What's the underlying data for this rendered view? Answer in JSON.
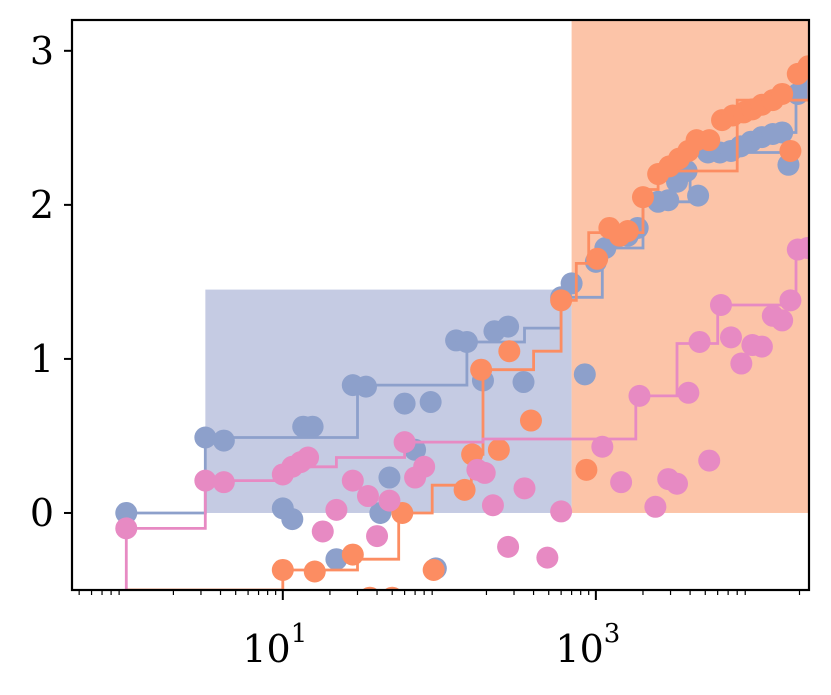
{
  "chart_data": {
    "type": "scatter",
    "title": "",
    "xlabel": "",
    "ylabel": "",
    "xscale": "log",
    "xlim": [
      0.45,
      23000
    ],
    "ylim": [
      -0.5,
      3.2
    ],
    "grid": false,
    "legend": "none",
    "x_ticks": [
      {
        "base": "10",
        "exp": "1",
        "value": 10
      },
      {
        "base": "10",
        "exp": "3",
        "value": 1000
      }
    ],
    "y_ticks": [
      {
        "label": "0",
        "value": 0
      },
      {
        "label": "1",
        "value": 1
      },
      {
        "label": "2",
        "value": 2
      },
      {
        "label": "3",
        "value": 3
      }
    ],
    "shaded_regions": [
      {
        "color": "#c5cbe3",
        "x_range": [
          3.2,
          700
        ],
        "y_range": [
          0,
          1.45
        ]
      },
      {
        "color": "#fcc4a8",
        "x_range": [
          700,
          23000
        ],
        "y_range": [
          0,
          3.2
        ]
      }
    ],
    "series": [
      {
        "color": "#8da0cb",
        "step_line": [
          [
            1,
            0
          ],
          [
            3.2,
            0
          ],
          [
            3.2,
            0.49
          ],
          [
            30,
            0.49
          ],
          [
            30,
            0.83
          ],
          [
            150,
            0.83
          ],
          [
            150,
            1.11
          ],
          [
            350,
            1.11
          ],
          [
            350,
            1.2
          ],
          [
            600,
            1.2
          ],
          [
            600,
            1.4
          ],
          [
            1100,
            1.4
          ],
          [
            1100,
            1.72
          ],
          [
            2000,
            1.72
          ],
          [
            2000,
            2.02
          ],
          [
            4000,
            2.02
          ],
          [
            4000,
            2.34
          ],
          [
            16000,
            2.34
          ],
          [
            16000,
            2.47
          ],
          [
            19000,
            2.47
          ],
          [
            19000,
            2.72
          ],
          [
            23000,
            2.72
          ]
        ],
        "points": [
          [
            1,
            0.0
          ],
          [
            3.2,
            0.49
          ],
          [
            4.2,
            0.47
          ],
          [
            10,
            0.03
          ],
          [
            11.5,
            -0.04
          ],
          [
            13.5,
            0.56
          ],
          [
            15.5,
            0.56
          ],
          [
            22,
            -0.3
          ],
          [
            28,
            0.83
          ],
          [
            34,
            0.82
          ],
          [
            42,
            0.0
          ],
          [
            48,
            0.23
          ],
          [
            60,
            0.71
          ],
          [
            70,
            0.41
          ],
          [
            88,
            0.72
          ],
          [
            95,
            -0.36
          ],
          [
            128,
            1.12
          ],
          [
            150,
            1.11
          ],
          [
            190,
            0.86
          ],
          [
            225,
            1.18
          ],
          [
            275,
            1.21
          ],
          [
            345,
            0.85
          ],
          [
            600,
            1.4
          ],
          [
            700,
            1.49
          ],
          [
            850,
            0.9
          ],
          [
            1000,
            1.63
          ],
          [
            1150,
            1.72
          ],
          [
            1350,
            1.79
          ],
          [
            1600,
            1.8
          ],
          [
            1850,
            1.85
          ],
          [
            2500,
            2.02
          ],
          [
            2900,
            2.03
          ],
          [
            3300,
            2.15
          ],
          [
            3800,
            2.22
          ],
          [
            4500,
            2.06
          ],
          [
            5200,
            2.34
          ],
          [
            6200,
            2.34
          ],
          [
            7300,
            2.35
          ],
          [
            8400,
            2.38
          ],
          [
            9800,
            2.41
          ],
          [
            11500,
            2.44
          ],
          [
            13500,
            2.46
          ],
          [
            15500,
            2.47
          ],
          [
            17000,
            2.26
          ],
          [
            19500,
            2.72
          ],
          [
            22500,
            2.78
          ]
        ]
      },
      {
        "color": "#fc8d62",
        "step_line": [
          [
            1,
            -0.5
          ],
          [
            1,
            -0.5
          ],
          [
            10,
            -0.5
          ],
          [
            10,
            -0.37
          ],
          [
            30,
            -0.37
          ],
          [
            30,
            -0.3
          ],
          [
            55,
            -0.3
          ],
          [
            55,
            0.0
          ],
          [
            90,
            0.0
          ],
          [
            90,
            0.18
          ],
          [
            160,
            0.18
          ],
          [
            160,
            0.38
          ],
          [
            190,
            0.38
          ],
          [
            190,
            0.93
          ],
          [
            400,
            0.93
          ],
          [
            400,
            1.05
          ],
          [
            600,
            1.05
          ],
          [
            600,
            1.38
          ],
          [
            750,
            1.38
          ],
          [
            750,
            1.62
          ],
          [
            900,
            1.62
          ],
          [
            900,
            1.82
          ],
          [
            2000,
            1.82
          ],
          [
            2000,
            2.1
          ],
          [
            2500,
            2.1
          ],
          [
            2500,
            2.22
          ],
          [
            8000,
            2.22
          ],
          [
            8000,
            2.68
          ],
          [
            23000,
            2.68
          ],
          [
            23000,
            2.9
          ]
        ],
        "points": [
          [
            10,
            -0.37
          ],
          [
            16,
            -0.38
          ],
          [
            28,
            -0.27
          ],
          [
            36,
            -0.55
          ],
          [
            50,
            -0.55
          ],
          [
            58,
            0.0
          ],
          [
            92,
            -0.37
          ],
          [
            145,
            0.15
          ],
          [
            162,
            0.38
          ],
          [
            185,
            0.93
          ],
          [
            240,
            0.41
          ],
          [
            280,
            1.05
          ],
          [
            385,
            0.6
          ],
          [
            600,
            1.38
          ],
          [
            870,
            0.28
          ],
          [
            1020,
            1.65
          ],
          [
            1220,
            1.85
          ],
          [
            1420,
            1.8
          ],
          [
            1600,
            1.83
          ],
          [
            2000,
            2.05
          ],
          [
            2500,
            2.2
          ],
          [
            2950,
            2.25
          ],
          [
            3400,
            2.3
          ],
          [
            3900,
            2.35
          ],
          [
            4400,
            2.42
          ],
          [
            5300,
            2.42
          ],
          [
            6400,
            2.55
          ],
          [
            7500,
            2.58
          ],
          [
            8800,
            2.6
          ],
          [
            10000,
            2.62
          ],
          [
            11500,
            2.65
          ],
          [
            13500,
            2.68
          ],
          [
            15500,
            2.72
          ],
          [
            17500,
            2.35
          ],
          [
            19500,
            2.85
          ],
          [
            22800,
            2.9
          ]
        ]
      },
      {
        "color": "#e78ac3",
        "step_line": [
          [
            1,
            -0.5
          ],
          [
            1,
            -0.1
          ],
          [
            3.2,
            -0.1
          ],
          [
            3.2,
            0.21
          ],
          [
            10,
            0.21
          ],
          [
            10,
            0.3
          ],
          [
            22,
            0.3
          ],
          [
            22,
            0.36
          ],
          [
            60,
            0.36
          ],
          [
            60,
            0.46
          ],
          [
            190,
            0.46
          ],
          [
            190,
            0.48
          ],
          [
            1800,
            0.48
          ],
          [
            1800,
            0.76
          ],
          [
            3300,
            0.76
          ],
          [
            3300,
            1.1
          ],
          [
            6000,
            1.1
          ],
          [
            6000,
            1.35
          ],
          [
            19000,
            1.35
          ],
          [
            19000,
            1.71
          ],
          [
            23000,
            1.71
          ]
        ],
        "points": [
          [
            1,
            -0.1
          ],
          [
            3.2,
            0.21
          ],
          [
            4.2,
            0.2
          ],
          [
            10,
            0.25
          ],
          [
            11.5,
            0.3
          ],
          [
            13,
            0.33
          ],
          [
            14.5,
            0.36
          ],
          [
            18,
            -0.12
          ],
          [
            22,
            0.02
          ],
          [
            28,
            0.21
          ],
          [
            35,
            0.11
          ],
          [
            40,
            -0.15
          ],
          [
            48,
            0.08
          ],
          [
            60,
            0.46
          ],
          [
            70,
            0.23
          ],
          [
            80,
            0.3
          ],
          [
            175,
            0.28
          ],
          [
            195,
            0.26
          ],
          [
            220,
            0.05
          ],
          [
            275,
            -0.22
          ],
          [
            350,
            0.16
          ],
          [
            490,
            -0.29
          ],
          [
            600,
            0.01
          ],
          [
            1100,
            0.43
          ],
          [
            1450,
            0.2
          ],
          [
            1900,
            0.76
          ],
          [
            2400,
            0.04
          ],
          [
            2900,
            0.22
          ],
          [
            3300,
            0.19
          ],
          [
            3900,
            0.78
          ],
          [
            4600,
            1.11
          ],
          [
            5300,
            0.34
          ],
          [
            6300,
            1.35
          ],
          [
            7300,
            1.14
          ],
          [
            8500,
            0.97
          ],
          [
            10000,
            1.09
          ],
          [
            11500,
            1.08
          ],
          [
            13500,
            1.28
          ],
          [
            15500,
            1.25
          ],
          [
            17500,
            1.38
          ],
          [
            19500,
            1.71
          ],
          [
            22500,
            1.72
          ]
        ]
      }
    ]
  }
}
